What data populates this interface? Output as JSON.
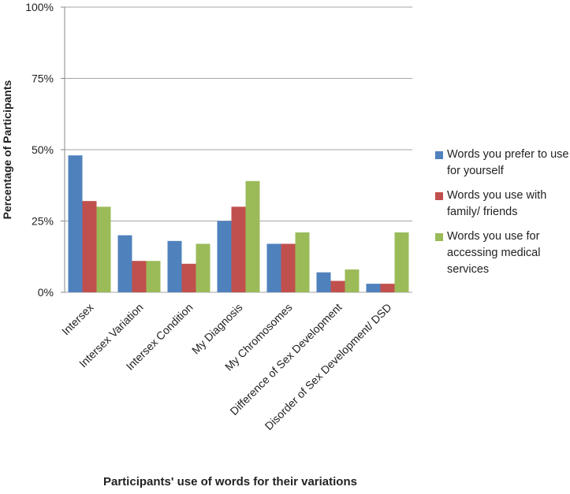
{
  "chart_data": {
    "type": "bar",
    "y_label": "Percentage of Participants",
    "x_label": "Participants' use of words for their variations",
    "categories": [
      "Intersex",
      "Intersex Variation",
      "Intersex Condition",
      "My Diagnosis",
      "My Chromosomes",
      "Difference of Sex Development",
      "Disorder of Sex Development/ DSD"
    ],
    "series": [
      {
        "name": "Words you prefer to use for yourself",
        "color": "#4f81bd",
        "values": [
          48,
          20,
          18,
          25,
          17,
          7,
          3
        ]
      },
      {
        "name": "Words you use with family/ friends",
        "color": "#c0504d",
        "values": [
          32,
          11,
          10,
          30,
          17,
          4,
          3
        ]
      },
      {
        "name": "Words you use for accessing medical services",
        "color": "#9bbb59",
        "values": [
          30,
          11,
          17,
          39,
          21,
          8,
          21
        ]
      }
    ],
    "ylim": [
      0,
      100
    ],
    "yticks": [
      {
        "value": 0,
        "label": "0%"
      },
      {
        "value": 25,
        "label": "25%"
      },
      {
        "value": 50,
        "label": "50%"
      },
      {
        "value": 75,
        "label": "75%"
      },
      {
        "value": 100,
        "label": "100%"
      }
    ],
    "grid": true
  }
}
